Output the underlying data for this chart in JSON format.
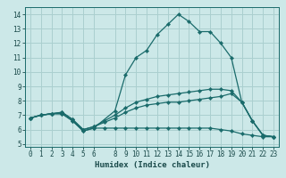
{
  "xlabel": "Humidex (Indice chaleur)",
  "ylabel": "",
  "bg_color": "#cce8e8",
  "grid_color": "#aacfcf",
  "line_color": "#1a6b6b",
  "xlim": [
    -0.5,
    23.5
  ],
  "ylim": [
    4.8,
    14.5
  ],
  "xticks": [
    0,
    1,
    2,
    3,
    4,
    5,
    6,
    8,
    9,
    10,
    11,
    12,
    13,
    14,
    15,
    16,
    17,
    18,
    19,
    20,
    21,
    22,
    23
  ],
  "yticks": [
    5,
    6,
    7,
    8,
    9,
    10,
    11,
    12,
    13,
    14
  ],
  "lines": [
    {
      "x": [
        0,
        1,
        2,
        3,
        4,
        5,
        6,
        7,
        8,
        9,
        10,
        11,
        12,
        13,
        14,
        15,
        16,
        17,
        18,
        19,
        20,
        21,
        22,
        23
      ],
      "y": [
        6.8,
        7.0,
        7.1,
        7.1,
        6.6,
        5.9,
        6.1,
        6.1,
        6.1,
        6.1,
        6.1,
        6.1,
        6.1,
        6.1,
        6.1,
        6.1,
        6.1,
        6.1,
        6.0,
        5.9,
        5.7,
        5.6,
        5.5,
        5.5
      ]
    },
    {
      "x": [
        0,
        1,
        2,
        3,
        4,
        5,
        6,
        7,
        8,
        9,
        10,
        11,
        12,
        13,
        14,
        15,
        16,
        17,
        18,
        19,
        20,
        21,
        22,
        23
      ],
      "y": [
        6.8,
        7.0,
        7.1,
        7.2,
        6.7,
        6.0,
        6.2,
        6.5,
        6.8,
        7.2,
        7.5,
        7.7,
        7.8,
        7.9,
        7.9,
        8.0,
        8.1,
        8.2,
        8.3,
        8.5,
        7.9,
        6.6,
        5.6,
        5.5
      ]
    },
    {
      "x": [
        0,
        1,
        2,
        3,
        4,
        5,
        6,
        7,
        8,
        9,
        10,
        11,
        12,
        13,
        14,
        15,
        16,
        17,
        18,
        19,
        20,
        21,
        22,
        23
      ],
      "y": [
        6.8,
        7.0,
        7.1,
        7.2,
        6.7,
        6.0,
        6.2,
        6.6,
        7.0,
        7.5,
        7.9,
        8.1,
        8.3,
        8.4,
        8.5,
        8.6,
        8.7,
        8.8,
        8.8,
        8.7,
        7.9,
        6.6,
        5.6,
        5.5
      ]
    },
    {
      "x": [
        0,
        1,
        2,
        3,
        4,
        5,
        6,
        8,
        9,
        10,
        11,
        12,
        13,
        14,
        15,
        16,
        17,
        18,
        19,
        20,
        21,
        22,
        23
      ],
      "y": [
        6.8,
        7.0,
        7.1,
        7.1,
        6.6,
        5.9,
        6.1,
        7.3,
        9.8,
        11.0,
        11.5,
        12.6,
        13.3,
        14.0,
        13.5,
        12.8,
        12.8,
        12.0,
        11.0,
        7.9,
        6.6,
        5.6,
        5.5
      ]
    }
  ]
}
